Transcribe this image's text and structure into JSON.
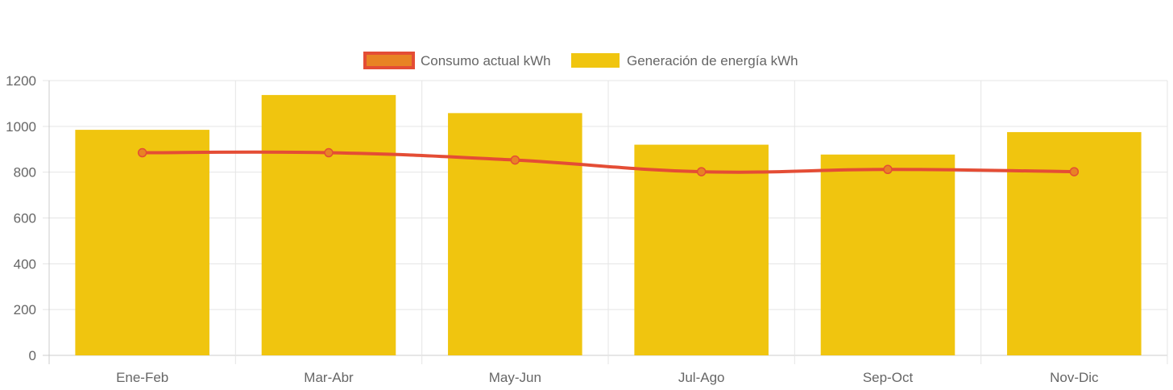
{
  "chart_data": {
    "type": "bar",
    "categories": [
      "Ene-Feb",
      "Mar-Abr",
      "May-Jun",
      "Jul-Ago",
      "Sep-Oct",
      "Nov-Dic"
    ],
    "series": [
      {
        "name": "Consumo actual kWh",
        "type": "line",
        "values": [
          885,
          885,
          853,
          802,
          812,
          802
        ],
        "color": "#e44d35",
        "point_color": "#e88324"
      },
      {
        "name": "Generación de energía kWh",
        "type": "bar",
        "values": [
          985,
          1137,
          1058,
          920,
          877,
          975
        ],
        "color": "#f0c50f"
      }
    ],
    "ylim": [
      0,
      1200
    ],
    "yticks": [
      "0",
      "200",
      "400",
      "600",
      "800",
      "1000",
      "1200"
    ],
    "grid": true,
    "legend_position": "top-center",
    "title": "",
    "xlabel": "",
    "ylabel": ""
  },
  "colors": {
    "grid": "#e5e5e5",
    "axis": "#cccccc",
    "text": "#666666",
    "legend_line_fill": "#e88324",
    "legend_line_border": "#e44d35"
  }
}
